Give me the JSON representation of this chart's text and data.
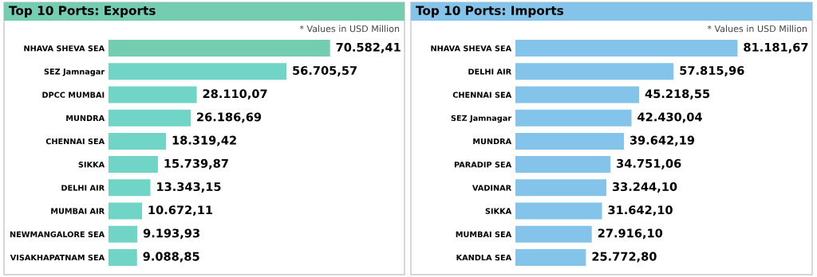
{
  "chart_data": [
    {
      "type": "bar",
      "orientation": "horizontal",
      "title": "Top 10 Ports: Exports",
      "annotations": [
        "* Values in USD Million"
      ],
      "categories": [
        "NHAVA SHEVA SEA",
        "SEZ Jamnagar",
        "DPCC MUMBAI",
        "MUNDRA",
        "CHENNAI SEA",
        "SIKKA",
        "DELHI AIR",
        "MUMBAI AIR",
        "NEWMANGALORE SEA",
        "VISAKHAPATNAM SEA"
      ],
      "values": [
        70582.41,
        56705.57,
        28110.07,
        26186.69,
        18319.42,
        15739.87,
        13343.15,
        10672.11,
        9193.93,
        9088.85
      ],
      "value_labels": [
        "70.582,41",
        "56.705,57",
        "28.110,07",
        "26.186,69",
        "18.319,42",
        "15.739,87",
        "13.343,15",
        "10.672,11",
        "9.193,93",
        "9.088,85"
      ],
      "colors": [
        "#74ccb1",
        "#70d4c6",
        "#70d4c6",
        "#70d4c6",
        "#70d4c6",
        "#70d4c6",
        "#70d4c6",
        "#70d4c6",
        "#70d4c6",
        "#70d4c6"
      ],
      "grid": false,
      "legend": false,
      "tick_labels": "y"
    },
    {
      "type": "bar",
      "orientation": "horizontal",
      "title": "Top 10 Ports: Imports",
      "annotations": [
        "* Values in USD Million"
      ],
      "categories": [
        "NHAVA SHEVA SEA",
        "DELHI AIR",
        "CHENNAI SEA",
        "SEZ Jamnagar",
        "MUNDRA",
        "PARADIP SEA",
        "VADINAR",
        "SIKKA",
        "MUMBAI SEA",
        "KANDLA SEA"
      ],
      "values": [
        81181.67,
        57815.96,
        45218.55,
        42430.04,
        39642.19,
        34751.06,
        33244.1,
        31642.1,
        27916.1,
        25772.8
      ],
      "value_labels": [
        "81.181,67",
        "57.815,96",
        "45.218,55",
        "42.430,04",
        "39.642,19",
        "34.751,06",
        "33.244,10",
        "31.642,10",
        "27.916,10",
        "25.772,80"
      ],
      "colors": [
        "#84c4ea",
        "#84c4ea",
        "#84c4ea",
        "#84c4ea",
        "#84c4ea",
        "#84c4ea",
        "#84c4ea",
        "#84c4ea",
        "#84c4ea",
        "#84c4ea"
      ],
      "grid": false,
      "legend": false,
      "tick_labels": "y"
    }
  ]
}
